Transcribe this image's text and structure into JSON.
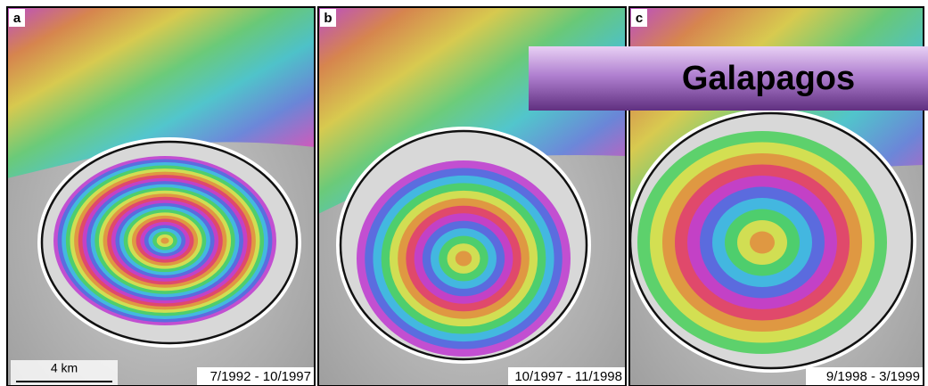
{
  "panels": [
    {
      "label": "a",
      "dates": "7/1992 - 10/1997"
    },
    {
      "label": "b",
      "dates": "10/1997 - 11/1998"
    },
    {
      "label": "c",
      "dates": "9/1998 - 3/1999"
    }
  ],
  "scale_bar": "4 km",
  "banner": "Galapagos"
}
